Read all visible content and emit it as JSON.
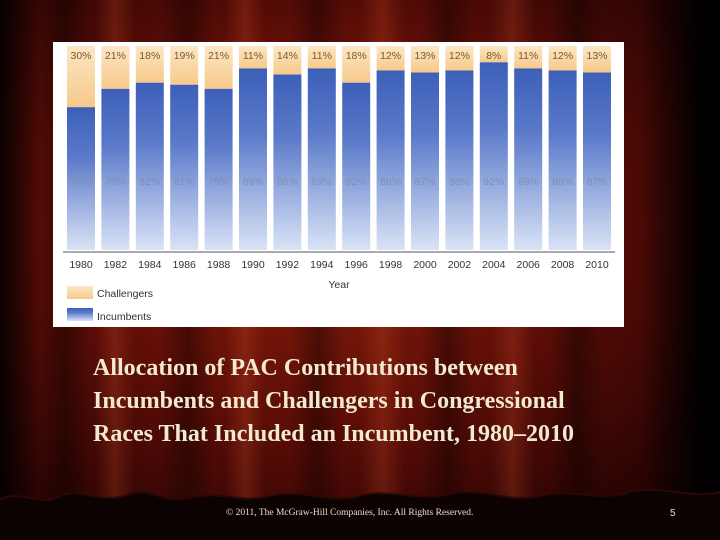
{
  "caption": {
    "line1": "Allocation of PAC Contributions between",
    "line2": "Incumbents and Challengers in Congressional",
    "line3": "Races That Included an Incumbent, 1980–2010"
  },
  "footer": {
    "copyright": "© 2011, The McGraw-Hill Companies, Inc. All Rights Reserved.",
    "slide_number": "5"
  },
  "colors": {
    "challengers": "#f7c98a",
    "incumbents": "#5a79c9"
  },
  "chart_data": {
    "type": "bar",
    "stacked": true,
    "percent_stacked": true,
    "title": "",
    "xlabel": "Year",
    "ylabel": "",
    "ylim": [
      0,
      100
    ],
    "grid": false,
    "legend_position": "bottom-left",
    "categories": [
      "1980",
      "1982",
      "1984",
      "1986",
      "1988",
      "1990",
      "1992",
      "1994",
      "1996",
      "1998",
      "2000",
      "2002",
      "2004",
      "2006",
      "2008",
      "2010"
    ],
    "series": [
      {
        "name": "Incumbents",
        "values": [
          70,
          79,
          82,
          81,
          79,
          89,
          86,
          89,
          82,
          88,
          87,
          88,
          92,
          89,
          88,
          87
        ],
        "labels": [
          "70%",
          "79%",
          "82%",
          "81%",
          "79%",
          "89%",
          "86%",
          "89%",
          "82%",
          "88%",
          "87%",
          "88%",
          "92%",
          "89%",
          "88%",
          "87%"
        ]
      },
      {
        "name": "Challengers",
        "values": [
          30,
          21,
          18,
          19,
          21,
          11,
          14,
          11,
          18,
          12,
          13,
          12,
          8,
          11,
          12,
          13
        ],
        "labels": [
          "30%",
          "21%",
          "18%",
          "19%",
          "21%",
          "11%",
          "14%",
          "11%",
          "18%",
          "12%",
          "13%",
          "12%",
          "8%",
          "11%",
          "12%",
          "13%"
        ]
      }
    ]
  }
}
